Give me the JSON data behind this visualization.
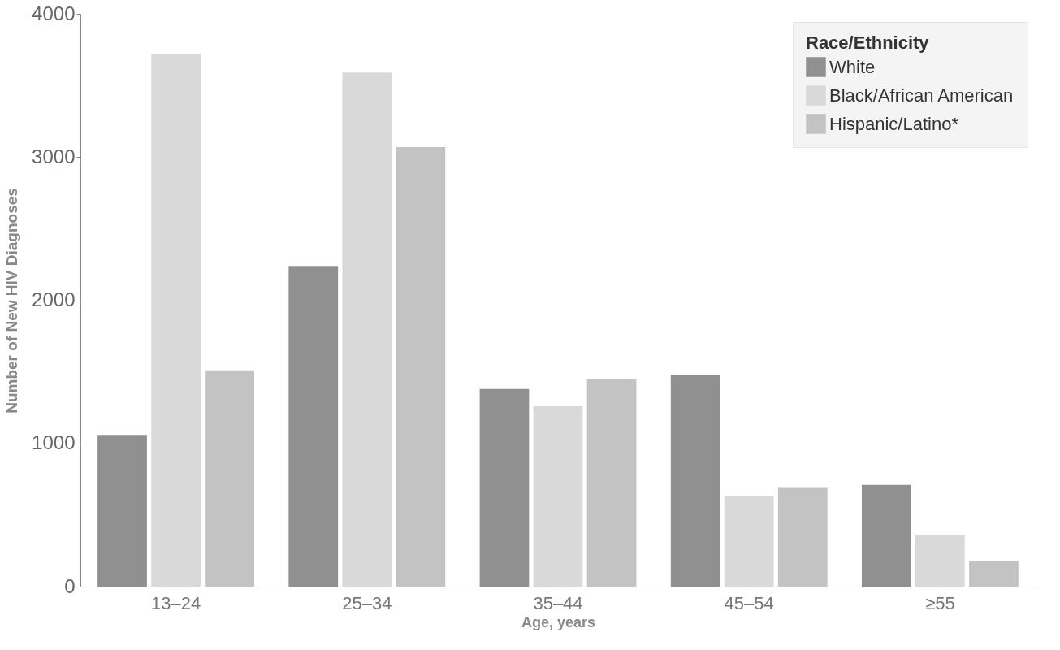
{
  "chart_data": {
    "type": "bar",
    "xlabel": "Age, years",
    "ylabel": "Number of New HIV Diagnoses",
    "legend_title": "Race/Ethnicity",
    "categories": [
      "13–24",
      "25–34",
      "35–44",
      "45–54",
      "≥55"
    ],
    "series": [
      {
        "name": "White",
        "color": "#909090",
        "values": [
          1060,
          2240,
          1380,
          1480,
          710
        ]
      },
      {
        "name": "Black/African American",
        "color": "#d9d9d9",
        "values": [
          3720,
          3590,
          1260,
          630,
          360
        ]
      },
      {
        "name": "Hispanic/Latino*",
        "color": "#c3c3c3",
        "values": [
          1510,
          3070,
          1450,
          690,
          180
        ]
      }
    ],
    "ylim": [
      0,
      4000
    ],
    "yticks": [
      0,
      1000,
      2000,
      3000,
      4000
    ],
    "grid": false,
    "legend": "top right"
  }
}
